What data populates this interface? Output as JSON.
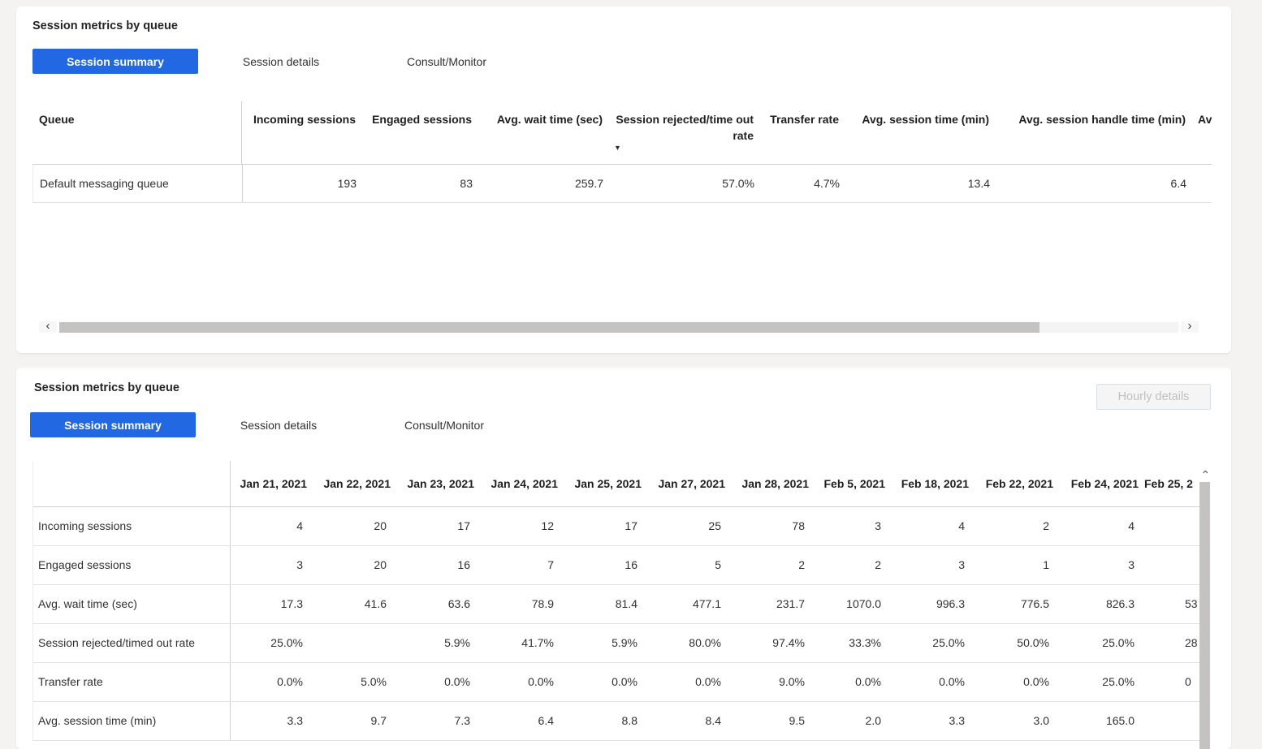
{
  "accent_color": "#2368e3",
  "panel_top": {
    "title": "Session metrics by queue",
    "tabs": [
      {
        "label": "Session summary",
        "active": true
      },
      {
        "label": "Session details",
        "active": false
      },
      {
        "label": "Consult/Monitor",
        "active": false
      }
    ],
    "table": {
      "columns": [
        "Queue",
        "Incoming sessions",
        "Engaged sessions",
        "Avg. wait time (sec)",
        "Session rejected/time out rate",
        "Transfer rate",
        "Avg. session time (min)",
        "Avg. session handle time (min)",
        "Av"
      ],
      "sorted_column_index": 4,
      "sort_indicator": "▼",
      "rows": [
        [
          "Default messaging queue",
          "193",
          "83",
          "259.7",
          "57.0%",
          "4.7%",
          "13.4",
          "6.4",
          ""
        ]
      ]
    },
    "hscrollbar": {
      "left_arrow": "‹",
      "right_arrow": "›"
    }
  },
  "panel_bottom": {
    "title": "Session metrics by queue",
    "hourly_details_button": "Hourly details",
    "tabs": [
      {
        "label": "Session summary",
        "active": true
      },
      {
        "label": "Session details",
        "active": false
      },
      {
        "label": "Consult/Monitor",
        "active": false
      }
    ],
    "table": {
      "columns": [
        "",
        "Jan 21, 2021",
        "Jan 22, 2021",
        "Jan 23, 2021",
        "Jan 24, 2021",
        "Jan 25, 2021",
        "Jan 27, 2021",
        "Jan 28, 2021",
        "Feb 5, 2021",
        "Feb 18, 2021",
        "Feb 22, 2021",
        "Feb 24, 2021",
        "Feb 25, 2"
      ],
      "rows": [
        [
          "Incoming sessions",
          "4",
          "20",
          "17",
          "12",
          "17",
          "25",
          "78",
          "3",
          "4",
          "2",
          "4",
          ""
        ],
        [
          "Engaged sessions",
          "3",
          "20",
          "16",
          "7",
          "16",
          "5",
          "2",
          "2",
          "3",
          "1",
          "3",
          ""
        ],
        [
          "Avg. wait time (sec)",
          "17.3",
          "41.6",
          "63.6",
          "78.9",
          "81.4",
          "477.1",
          "231.7",
          "1070.0",
          "996.3",
          "776.5",
          "826.3",
          "53"
        ],
        [
          "Session rejected/timed out rate",
          "25.0%",
          "",
          "5.9%",
          "41.7%",
          "5.9%",
          "80.0%",
          "97.4%",
          "33.3%",
          "25.0%",
          "50.0%",
          "25.0%",
          "28"
        ],
        [
          "Transfer rate",
          "0.0%",
          "5.0%",
          "0.0%",
          "0.0%",
          "0.0%",
          "0.0%",
          "9.0%",
          "0.0%",
          "0.0%",
          "0.0%",
          "25.0%",
          "0"
        ],
        [
          "Avg. session time (min)",
          "3.3",
          "9.7",
          "7.3",
          "6.4",
          "8.8",
          "8.4",
          "9.5",
          "2.0",
          "3.3",
          "3.0",
          "165.0",
          ""
        ]
      ]
    },
    "vscrollbar": {
      "up_arrow": "›"
    }
  }
}
